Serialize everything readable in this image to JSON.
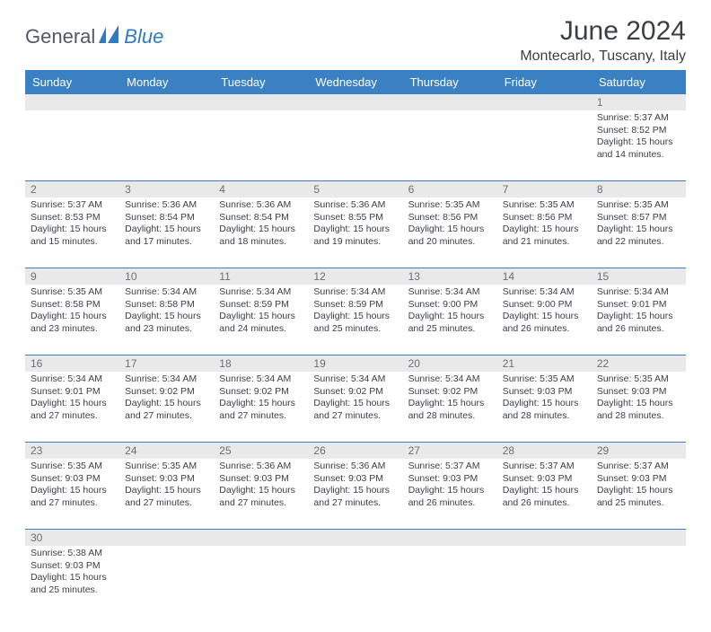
{
  "logo": {
    "text_a": "General",
    "text_b": "Blue"
  },
  "title": "June 2024",
  "location": "Montecarlo, Tuscany, Italy",
  "day_headers": [
    "Sunday",
    "Monday",
    "Tuesday",
    "Wednesday",
    "Thursday",
    "Friday",
    "Saturday"
  ],
  "colors": {
    "header_bg": "#3a81c4",
    "header_text": "#ffffff",
    "daynum_bg": "#e9e9e9",
    "daynum_text": "#6a6f76",
    "body_text": "#3a3f46",
    "rule": "#3a81c4"
  },
  "weeks": [
    [
      null,
      null,
      null,
      null,
      null,
      null,
      {
        "n": "1",
        "sunrise": "Sunrise: 5:37 AM",
        "sunset": "Sunset: 8:52 PM",
        "daylight": "Daylight: 15 hours and 14 minutes."
      }
    ],
    [
      {
        "n": "2",
        "sunrise": "Sunrise: 5:37 AM",
        "sunset": "Sunset: 8:53 PM",
        "daylight": "Daylight: 15 hours and 15 minutes."
      },
      {
        "n": "3",
        "sunrise": "Sunrise: 5:36 AM",
        "sunset": "Sunset: 8:54 PM",
        "daylight": "Daylight: 15 hours and 17 minutes."
      },
      {
        "n": "4",
        "sunrise": "Sunrise: 5:36 AM",
        "sunset": "Sunset: 8:54 PM",
        "daylight": "Daylight: 15 hours and 18 minutes."
      },
      {
        "n": "5",
        "sunrise": "Sunrise: 5:36 AM",
        "sunset": "Sunset: 8:55 PM",
        "daylight": "Daylight: 15 hours and 19 minutes."
      },
      {
        "n": "6",
        "sunrise": "Sunrise: 5:35 AM",
        "sunset": "Sunset: 8:56 PM",
        "daylight": "Daylight: 15 hours and 20 minutes."
      },
      {
        "n": "7",
        "sunrise": "Sunrise: 5:35 AM",
        "sunset": "Sunset: 8:56 PM",
        "daylight": "Daylight: 15 hours and 21 minutes."
      },
      {
        "n": "8",
        "sunrise": "Sunrise: 5:35 AM",
        "sunset": "Sunset: 8:57 PM",
        "daylight": "Daylight: 15 hours and 22 minutes."
      }
    ],
    [
      {
        "n": "9",
        "sunrise": "Sunrise: 5:35 AM",
        "sunset": "Sunset: 8:58 PM",
        "daylight": "Daylight: 15 hours and 23 minutes."
      },
      {
        "n": "10",
        "sunrise": "Sunrise: 5:34 AM",
        "sunset": "Sunset: 8:58 PM",
        "daylight": "Daylight: 15 hours and 23 minutes."
      },
      {
        "n": "11",
        "sunrise": "Sunrise: 5:34 AM",
        "sunset": "Sunset: 8:59 PM",
        "daylight": "Daylight: 15 hours and 24 minutes."
      },
      {
        "n": "12",
        "sunrise": "Sunrise: 5:34 AM",
        "sunset": "Sunset: 8:59 PM",
        "daylight": "Daylight: 15 hours and 25 minutes."
      },
      {
        "n": "13",
        "sunrise": "Sunrise: 5:34 AM",
        "sunset": "Sunset: 9:00 PM",
        "daylight": "Daylight: 15 hours and 25 minutes."
      },
      {
        "n": "14",
        "sunrise": "Sunrise: 5:34 AM",
        "sunset": "Sunset: 9:00 PM",
        "daylight": "Daylight: 15 hours and 26 minutes."
      },
      {
        "n": "15",
        "sunrise": "Sunrise: 5:34 AM",
        "sunset": "Sunset: 9:01 PM",
        "daylight": "Daylight: 15 hours and 26 minutes."
      }
    ],
    [
      {
        "n": "16",
        "sunrise": "Sunrise: 5:34 AM",
        "sunset": "Sunset: 9:01 PM",
        "daylight": "Daylight: 15 hours and 27 minutes."
      },
      {
        "n": "17",
        "sunrise": "Sunrise: 5:34 AM",
        "sunset": "Sunset: 9:02 PM",
        "daylight": "Daylight: 15 hours and 27 minutes."
      },
      {
        "n": "18",
        "sunrise": "Sunrise: 5:34 AM",
        "sunset": "Sunset: 9:02 PM",
        "daylight": "Daylight: 15 hours and 27 minutes."
      },
      {
        "n": "19",
        "sunrise": "Sunrise: 5:34 AM",
        "sunset": "Sunset: 9:02 PM",
        "daylight": "Daylight: 15 hours and 27 minutes."
      },
      {
        "n": "20",
        "sunrise": "Sunrise: 5:34 AM",
        "sunset": "Sunset: 9:02 PM",
        "daylight": "Daylight: 15 hours and 28 minutes."
      },
      {
        "n": "21",
        "sunrise": "Sunrise: 5:35 AM",
        "sunset": "Sunset: 9:03 PM",
        "daylight": "Daylight: 15 hours and 28 minutes."
      },
      {
        "n": "22",
        "sunrise": "Sunrise: 5:35 AM",
        "sunset": "Sunset: 9:03 PM",
        "daylight": "Daylight: 15 hours and 28 minutes."
      }
    ],
    [
      {
        "n": "23",
        "sunrise": "Sunrise: 5:35 AM",
        "sunset": "Sunset: 9:03 PM",
        "daylight": "Daylight: 15 hours and 27 minutes."
      },
      {
        "n": "24",
        "sunrise": "Sunrise: 5:35 AM",
        "sunset": "Sunset: 9:03 PM",
        "daylight": "Daylight: 15 hours and 27 minutes."
      },
      {
        "n": "25",
        "sunrise": "Sunrise: 5:36 AM",
        "sunset": "Sunset: 9:03 PM",
        "daylight": "Daylight: 15 hours and 27 minutes."
      },
      {
        "n": "26",
        "sunrise": "Sunrise: 5:36 AM",
        "sunset": "Sunset: 9:03 PM",
        "daylight": "Daylight: 15 hours and 27 minutes."
      },
      {
        "n": "27",
        "sunrise": "Sunrise: 5:37 AM",
        "sunset": "Sunset: 9:03 PM",
        "daylight": "Daylight: 15 hours and 26 minutes."
      },
      {
        "n": "28",
        "sunrise": "Sunrise: 5:37 AM",
        "sunset": "Sunset: 9:03 PM",
        "daylight": "Daylight: 15 hours and 26 minutes."
      },
      {
        "n": "29",
        "sunrise": "Sunrise: 5:37 AM",
        "sunset": "Sunset: 9:03 PM",
        "daylight": "Daylight: 15 hours and 25 minutes."
      }
    ],
    [
      {
        "n": "30",
        "sunrise": "Sunrise: 5:38 AM",
        "sunset": "Sunset: 9:03 PM",
        "daylight": "Daylight: 15 hours and 25 minutes."
      },
      null,
      null,
      null,
      null,
      null,
      null
    ]
  ]
}
